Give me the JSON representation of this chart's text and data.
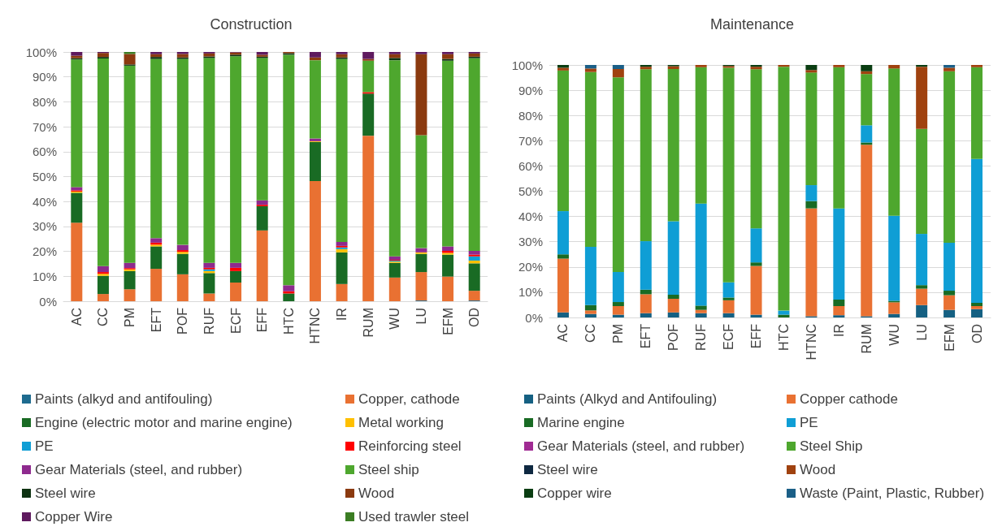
{
  "chart_data": [
    {
      "type": "bar",
      "title": "Construction",
      "stacked": true,
      "grid": "y",
      "legend": "bottom",
      "ylim": [
        0,
        100
      ],
      "yticks": [
        {
          "value": 0,
          "label": "0%"
        },
        {
          "value": 10,
          "label": "10%"
        },
        {
          "value": 20,
          "label": "20%"
        },
        {
          "value": 30,
          "label": "30%"
        },
        {
          "value": 40,
          "label": "40%"
        },
        {
          "value": 50,
          "label": "50%"
        },
        {
          "value": 60,
          "label": "60%"
        },
        {
          "value": 70,
          "label": "70%"
        },
        {
          "value": 80,
          "label": "80%"
        },
        {
          "value": 90,
          "label": "90%"
        },
        {
          "value": 100,
          "label": "100%"
        }
      ],
      "categories": [
        "AC",
        "CC",
        "PM",
        "EFT",
        "POF",
        "RUF",
        "ECF",
        "EFF",
        "HTC",
        "HTNC",
        "IR",
        "RUM",
        "WU",
        "LU",
        "EFM",
        "OD"
      ],
      "series": [
        {
          "name": "Paints (alkyd and antifouling)",
          "color": "#1e6b8f",
          "values": [
            0,
            0,
            0,
            0,
            0,
            0,
            0,
            0,
            0,
            0,
            0,
            0,
            0,
            0.3,
            0,
            0.3
          ]
        },
        {
          "name": "Copper, cathode",
          "color": "#e97132",
          "values": [
            31.5,
            2.9,
            4.8,
            13,
            10.8,
            3.1,
            7.5,
            28.4,
            0,
            48.2,
            6.9,
            66.4,
            9.5,
            11.4,
            9.9,
            3.9
          ]
        },
        {
          "name": "Engine (electric motor and marine engine)",
          "color": "#196b24",
          "values": [
            12,
            7.3,
            7.3,
            9,
            8.2,
            8.2,
            4.6,
            9.7,
            3.1,
            15.7,
            12.7,
            16.9,
            5.9,
            7.3,
            8.8,
            11
          ]
        },
        {
          "name": "Metal working",
          "color": "#ffc000",
          "values": [
            0.5,
            0.8,
            0.7,
            0.7,
            0.8,
            0.8,
            0,
            0,
            0,
            0.3,
            1.3,
            0,
            0.5,
            0.6,
            0.7,
            1.1
          ]
        },
        {
          "name": "PE",
          "color": "#0f9ed5",
          "values": [
            0,
            0,
            0,
            0,
            0,
            0.7,
            0,
            0,
            0,
            0,
            0.7,
            0,
            0.4,
            0,
            0,
            1.7
          ]
        },
        {
          "name": "Reinforcing steel",
          "color": "#ff0000",
          "values": [
            0.5,
            0.7,
            0.5,
            0.8,
            0.7,
            0.6,
            1.3,
            0.6,
            0.9,
            0,
            0.6,
            0.6,
            0.3,
            0,
            0.8,
            0.7
          ]
        },
        {
          "name": "Gear Materials (steel, and rubber)",
          "color": "#8e2a8e",
          "values": [
            1.3,
            2.4,
            2.1,
            1.8,
            2.1,
            2,
            2,
            1.8,
            2.4,
            1.1,
            1.6,
            0,
            1.4,
            1.7,
            1.8,
            1.5
          ]
        },
        {
          "name": "Steel ship",
          "color": "#4ea72e",
          "values": [
            51.2,
            83.3,
            79.1,
            71.9,
            74.6,
            82.2,
            82.9,
            57.1,
            92.5,
            31.4,
            73.4,
            12.6,
            78.7,
            45.3,
            74.5,
            77.3
          ]
        },
        {
          "name": "Steel wire",
          "color": "#0e3312",
          "values": [
            0.5,
            0.6,
            0.5,
            0.8,
            0.6,
            0.6,
            0.6,
            0.5,
            0.6,
            0,
            0.6,
            0,
            0.9,
            0,
            0.7,
            0.6
          ]
        },
        {
          "name": "Wood",
          "color": "#8b3a0f",
          "values": [
            1,
            1.6,
            4.2,
            1.1,
            1.4,
            1.2,
            0.9,
            0.8,
            0.5,
            1.1,
            1.3,
            0.7,
            1.5,
            32.5,
            1.9,
            1.3
          ]
        },
        {
          "name": "Copper Wire",
          "color": "#5e1a5e",
          "values": [
            1.5,
            0.4,
            0,
            0.9,
            0.8,
            0.6,
            0.2,
            1.1,
            0,
            2.2,
            0.9,
            2.8,
            0.9,
            0.9,
            0.9,
            0.6
          ]
        },
        {
          "name": "Used trawler steel",
          "color": "#3b7d23",
          "values": [
            0,
            0,
            0.8,
            0,
            0,
            0,
            0,
            0,
            0,
            0,
            0,
            0,
            0,
            0,
            0,
            0
          ]
        }
      ]
    },
    {
      "type": "bar",
      "title": "Maintenance",
      "stacked": true,
      "grid": "y",
      "legend": "bottom",
      "ylim": [
        0,
        100
      ],
      "yticks": [
        {
          "value": 0,
          "label": "0%"
        },
        {
          "value": 10,
          "label": "10%"
        },
        {
          "value": 20,
          "label": "20%"
        },
        {
          "value": 30,
          "label": "30%"
        },
        {
          "value": 40,
          "label": "40%"
        },
        {
          "value": 50,
          "label": "50%"
        },
        {
          "value": 60,
          "label": "60%"
        },
        {
          "value": 70,
          "label": "70%"
        },
        {
          "value": 80,
          "label": "80%"
        },
        {
          "value": 90,
          "label": "90%"
        },
        {
          "value": 100,
          "label": "100%"
        }
      ],
      "categories": [
        "AC",
        "CC",
        "PM",
        "EFT",
        "POF",
        "RUF",
        "ECF",
        "EFF",
        "HTC",
        "HTNC",
        "IR",
        "RUM",
        "WU",
        "LU",
        "EFM",
        "OD"
      ],
      "series": [
        {
          "name": "Paints (Alkyd and Antifouling)",
          "color": "#156082",
          "values": [
            2,
            1.4,
            1.1,
            1.7,
            2,
            1.7,
            1.7,
            1.1,
            0,
            0.5,
            0.9,
            0.5,
            1.4,
            4.9,
            3,
            3.3
          ]
        },
        {
          "name": "Copper cathode",
          "color": "#e97132",
          "values": [
            21.3,
            1.4,
            3.4,
            7.5,
            5.4,
            1.3,
            5.1,
            19.3,
            0,
            42.7,
            3.6,
            67.9,
            4.6,
            6.5,
            5.8,
            1.2
          ]
        },
        {
          "name": "Marine engine",
          "color": "#196b24",
          "values": [
            1.7,
            2.1,
            1.6,
            1.8,
            1.6,
            1.7,
            1.1,
            1.4,
            1.1,
            2.9,
            2.6,
            0.9,
            0.6,
            1.4,
            1.8,
            1.3
          ]
        },
        {
          "name": "PE",
          "color": "#0f9ed5",
          "values": [
            17.1,
            23.1,
            11.9,
            19.2,
            29.1,
            40.4,
            6,
            13.5,
            1.6,
            6.3,
            36.1,
            6.8,
            33.7,
            20.3,
            19,
            57
          ]
        },
        {
          "name": "Gear Materials (steel, and rubber)",
          "color": "#a02b93",
          "values": [
            0,
            0,
            0,
            0,
            0,
            0,
            0,
            0,
            0,
            0,
            0,
            0,
            0,
            0,
            0,
            0
          ]
        },
        {
          "name": "Steel Ship",
          "color": "#4ea72e",
          "values": [
            55.7,
            69.2,
            77.1,
            68.1,
            60.3,
            54,
            85,
            63,
            96.6,
            44.6,
            55.9,
            20.3,
            58.3,
            41.6,
            67.9,
            36.3
          ]
        },
        {
          "name": "Steel wire",
          "color": "#0e2841",
          "values": [
            0,
            0,
            0,
            0,
            0,
            0,
            0,
            0,
            0,
            0,
            0,
            0,
            0,
            0,
            0,
            0
          ]
        },
        {
          "name": "Wood",
          "color": "#a0420f",
          "values": [
            1.1,
            1.4,
            3.3,
            1,
            1.1,
            0.9,
            0.7,
            1,
            0.7,
            1,
            0.9,
            1.1,
            1.4,
            24.6,
            1.4,
            0.9
          ]
        },
        {
          "name": "Copper wire",
          "color": "#0a3d12",
          "values": [
            1.1,
            0,
            0,
            0.7,
            0.5,
            0,
            0.4,
            0.7,
            0,
            2,
            0,
            2.5,
            0,
            0.7,
            0,
            0
          ]
        },
        {
          "name": "Waste (Paint, Plastic, Rubber)",
          "color": "#1b5f87",
          "values": [
            0,
            1.4,
            1.6,
            0,
            0,
            0,
            0,
            0,
            0,
            0,
            0,
            0,
            0,
            0,
            1.1,
            0
          ]
        }
      ]
    }
  ]
}
